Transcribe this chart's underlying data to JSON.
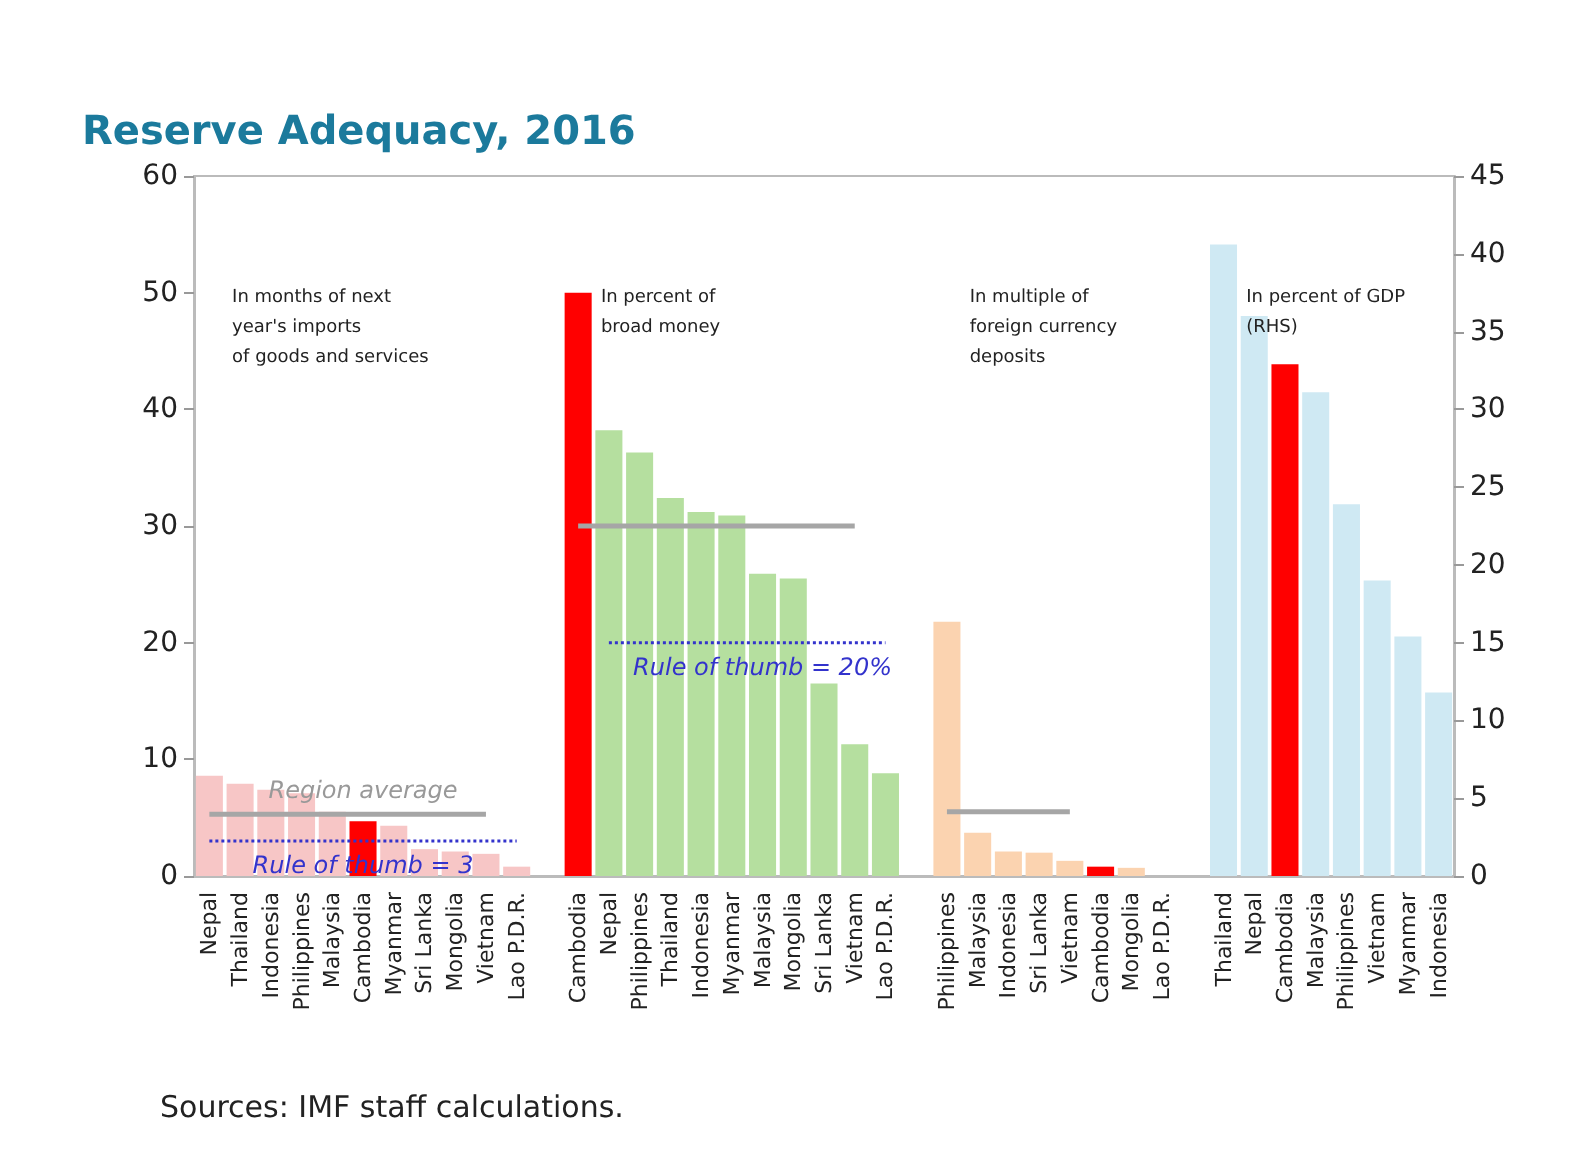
{
  "chart_data": {
    "type": "bar",
    "title": "Reserve Adequacy, 2016",
    "categories": [
      "Nepal",
      "Thailand",
      "Indonesia",
      "Philippines",
      "Malaysia",
      "Cambodia",
      "Myanmar",
      "Sri Lanka",
      "Mongolia",
      "Vietnam",
      "Lao P.D.R.",
      null,
      "Cambodia",
      "Nepal",
      "Philippines",
      "Thailand",
      "Indonesia",
      "Myanmar",
      "Malaysia",
      "Mongolia",
      "Sri Lanka",
      "Vietnam",
      "Lao P.D.R.",
      null,
      "Philippines",
      "Malaysia",
      "Indonesia",
      "Sri Lanka",
      "Vietnam",
      "Cambodia",
      "Mongolia",
      "Lao P.D.R.",
      null,
      "Thailand",
      "Nepal",
      "Cambodia",
      "Malaysia",
      "Philippines",
      "Vietnam",
      "Myanmar",
      "Indonesia"
    ],
    "series": [
      {
        "values": [
          8.6,
          7.9,
          7.4,
          7.1,
          5.5,
          4.7,
          4.3,
          2.3,
          2.1,
          1.9,
          0.8,
          null,
          50,
          38.2,
          36.3,
          32.4,
          31.2,
          30.9,
          25.9,
          25.5,
          16.5,
          11.3,
          8.8,
          null,
          21.8,
          3.7,
          2.1,
          2.0,
          1.3,
          0.8,
          0.7,
          null,
          null,
          null,
          null,
          null,
          null,
          null,
          null,
          null,
          null
        ],
        "colors": [
          "#f7c6c6",
          "#f7c6c6",
          "#f7c6c6",
          "#f7c6c6",
          "#f7c6c6",
          "#ff0000",
          "#f7c6c6",
          "#f7c6c6",
          "#f7c6c6",
          "#f7c6c6",
          "#f7c6c6",
          null,
          "#ff0000",
          "#b5df9f",
          "#b5df9f",
          "#b5df9f",
          "#b5df9f",
          "#b5df9f",
          "#b5df9f",
          "#b5df9f",
          "#b5df9f",
          "#b5df9f",
          "#b5df9f",
          null,
          "#fbd3b0",
          "#fbd3b0",
          "#fbd3b0",
          "#fbd3b0",
          "#fbd3b0",
          "#ff0000",
          "#fbd3b0",
          "#fbd3b0",
          null,
          null,
          null,
          null,
          null,
          null,
          null,
          null,
          null
        ]
      },
      {
        "axis": "y2",
        "values": [
          null,
          null,
          null,
          null,
          null,
          null,
          null,
          null,
          null,
          null,
          null,
          null,
          null,
          null,
          null,
          null,
          null,
          null,
          null,
          null,
          null,
          null,
          null,
          null,
          null,
          null,
          null,
          null,
          null,
          null,
          null,
          null,
          null,
          40.6,
          36,
          32.9,
          31.1,
          23.9,
          19.0,
          15.4,
          11.8
        ],
        "colors": [
          null,
          null,
          null,
          null,
          null,
          null,
          null,
          null,
          null,
          null,
          null,
          null,
          null,
          null,
          null,
          null,
          null,
          null,
          null,
          null,
          null,
          null,
          null,
          null,
          null,
          null,
          null,
          null,
          null,
          null,
          null,
          null,
          null,
          "#cfe9f3",
          "#cfe9f3",
          "#ff0000",
          "#cfe9f3",
          "#cfe9f3",
          "#cfe9f3",
          "#cfe9f3",
          "#cfe9f3"
        ]
      },
      {
        "type": "line",
        "name": "Region average",
        "color": "#a6a6a6",
        "line_style": "solid",
        "marker": "none",
        "values": [
          5.3,
          5.3,
          5.3,
          5.3,
          5.3,
          5.3,
          5.3,
          5.3,
          5.3,
          5.3,
          null,
          null,
          30,
          30,
          30,
          30,
          30,
          30,
          30,
          30,
          30,
          30,
          null,
          null,
          5.5,
          5.5,
          5.5,
          5.5,
          5.5,
          null,
          null,
          null,
          null,
          null,
          null,
          null,
          null,
          null,
          null,
          null,
          null
        ]
      },
      {
        "type": "line",
        "name": "Rule of thumb = 3",
        "color": "#3333cc",
        "line_style": "dotted",
        "marker": "none",
        "values": [
          3,
          3,
          3,
          3,
          3,
          3,
          3,
          3,
          3,
          3,
          3,
          null,
          null,
          null,
          null,
          null,
          null,
          null,
          null,
          null,
          null,
          null,
          null,
          null,
          null,
          null,
          null,
          null,
          null,
          null,
          null,
          null,
          null,
          null,
          null,
          null,
          null,
          null,
          null,
          null,
          null
        ]
      },
      {
        "type": "line",
        "name": "Rule of thumb = 20%",
        "color": "#3333cc",
        "line_style": "dotted",
        "marker": "none",
        "values": [
          null,
          null,
          null,
          null,
          null,
          null,
          null,
          null,
          null,
          null,
          null,
          null,
          null,
          20,
          20,
          20,
          20,
          20,
          20,
          20,
          20,
          20,
          20,
          null,
          null,
          null,
          null,
          null,
          null,
          null,
          null,
          null,
          null,
          null,
          null,
          null,
          null,
          null,
          null,
          null,
          null
        ]
      }
    ],
    "ylim": [
      0,
      60
    ],
    "yticks": [
      0,
      10,
      20,
      30,
      40,
      50,
      60
    ],
    "y2lim": [
      0,
      45
    ],
    "y2ticks": [
      0,
      5,
      10,
      15,
      20,
      25,
      30,
      35,
      40,
      45
    ],
    "annotations": [
      "In months of next\nyear's imports\nof goods and services",
      "In percent of\nbroad money",
      "In multiple of\nforeign currency\ndeposits",
      "In percent of GDP\n(RHS)",
      "Sources: IMF staff calculations."
    ],
    "legend": false,
    "grid": false
  }
}
